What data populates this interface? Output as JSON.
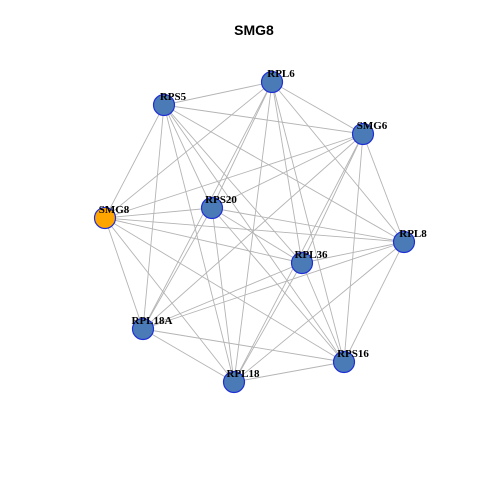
{
  "title": "SMG8",
  "colors": {
    "background": "#ffffff",
    "edge": "#b4b4b4",
    "node_default": "#4a7bb6",
    "node_highlight": "#ffa500",
    "node_border": "#1f2fd6"
  },
  "nodes": [
    {
      "id": "RPL6",
      "label": "RPL6",
      "highlight": false
    },
    {
      "id": "RPS5",
      "label": "RPS5",
      "highlight": false
    },
    {
      "id": "SMG6",
      "label": "SMG6",
      "highlight": false
    },
    {
      "id": "SMG8",
      "label": "SMG8",
      "highlight": true
    },
    {
      "id": "RPS20",
      "label": "RPS20",
      "highlight": false
    },
    {
      "id": "RPL8",
      "label": "RPL8",
      "highlight": false
    },
    {
      "id": "RPL36",
      "label": "RPL36",
      "highlight": false
    },
    {
      "id": "RPL18A",
      "label": "RPL18A",
      "highlight": false
    },
    {
      "id": "RPS16",
      "label": "RPS16",
      "highlight": false
    },
    {
      "id": "RPL18",
      "label": "RPL18",
      "highlight": false
    }
  ],
  "edges": [
    [
      "RPL6",
      "RPS5"
    ],
    [
      "RPL6",
      "SMG6"
    ],
    [
      "RPL6",
      "RPS20"
    ],
    [
      "RPL6",
      "RPL8"
    ],
    [
      "RPL6",
      "RPL36"
    ],
    [
      "RPL6",
      "RPL18A"
    ],
    [
      "RPL6",
      "RPS16"
    ],
    [
      "RPL6",
      "RPL18"
    ],
    [
      "RPL6",
      "SMG8"
    ],
    [
      "RPS5",
      "SMG6"
    ],
    [
      "RPS5",
      "SMG8"
    ],
    [
      "RPS5",
      "RPS20"
    ],
    [
      "RPS5",
      "RPL8"
    ],
    [
      "RPS5",
      "RPL36"
    ],
    [
      "RPS5",
      "RPL18A"
    ],
    [
      "RPS5",
      "RPS16"
    ],
    [
      "RPS5",
      "RPL18"
    ],
    [
      "SMG6",
      "SMG8"
    ],
    [
      "SMG6",
      "RPS20"
    ],
    [
      "SMG6",
      "RPL8"
    ],
    [
      "SMG6",
      "RPL36"
    ],
    [
      "SMG6",
      "RPL18A"
    ],
    [
      "SMG6",
      "RPS16"
    ],
    [
      "SMG6",
      "RPL18"
    ],
    [
      "SMG8",
      "RPS20"
    ],
    [
      "SMG8",
      "RPL8"
    ],
    [
      "SMG8",
      "RPL36"
    ],
    [
      "SMG8",
      "RPL18A"
    ],
    [
      "SMG8",
      "RPS16"
    ],
    [
      "SMG8",
      "RPL18"
    ],
    [
      "RPS20",
      "RPL8"
    ],
    [
      "RPS20",
      "RPL36"
    ],
    [
      "RPS20",
      "RPL18A"
    ],
    [
      "RPS20",
      "RPS16"
    ],
    [
      "RPS20",
      "RPL18"
    ],
    [
      "RPL8",
      "RPL36"
    ],
    [
      "RPL8",
      "RPL18A"
    ],
    [
      "RPL8",
      "RPS16"
    ],
    [
      "RPL8",
      "RPL18"
    ],
    [
      "RPL36",
      "RPL18A"
    ],
    [
      "RPL36",
      "RPS16"
    ],
    [
      "RPL36",
      "RPL18"
    ],
    [
      "RPL18A",
      "RPS16"
    ],
    [
      "RPL18A",
      "RPL18"
    ],
    [
      "RPS16",
      "RPL18"
    ]
  ]
}
